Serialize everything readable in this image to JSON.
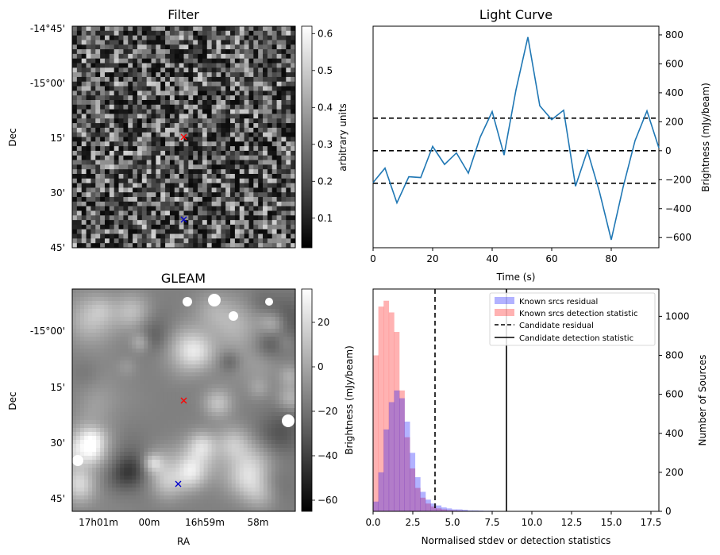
{
  "chart_data": [
    {
      "panel": "filter",
      "type": "heatmap",
      "title": "Filter",
      "ylabel": "Dec",
      "yticks": [
        "-14°45'",
        "-15°00'",
        "15'",
        "30'",
        "45'"
      ],
      "colorbar": {
        "label": "arbitrary units",
        "range": [
          0.02,
          0.62
        ],
        "ticks": [
          "0.1",
          "0.2",
          "0.3",
          "0.4",
          "0.5",
          "0.6"
        ],
        "tick_values": [
          0.1,
          0.2,
          0.3,
          0.4,
          0.5,
          0.6
        ],
        "cmap": "gray"
      },
      "markers": [
        {
          "name": "candidate",
          "symbol": "x",
          "color": "#ff0000"
        },
        {
          "name": "reference",
          "symbol": "x",
          "color": "#0000cc"
        }
      ]
    },
    {
      "panel": "gleam",
      "type": "heatmap",
      "title": "GLEAM",
      "xlabel": "RA",
      "ylabel": "Dec",
      "xticks": [
        "17h01m",
        "00m",
        "16h59m",
        "58m"
      ],
      "yticks": [
        "-15°00'",
        "15'",
        "30'",
        "45'"
      ],
      "colorbar": {
        "label": "Brightness (mJy/beam)",
        "range": [
          -65,
          35
        ],
        "ticks": [
          "20",
          "0",
          "−20",
          "−40",
          "−60"
        ],
        "tick_values": [
          20,
          0,
          -20,
          -40,
          -60
        ],
        "cmap": "gray"
      },
      "markers": [
        {
          "name": "candidate",
          "symbol": "x",
          "color": "#ff0000"
        },
        {
          "name": "reference",
          "symbol": "x",
          "color": "#0000cc"
        }
      ]
    },
    {
      "panel": "lightcurve",
      "type": "line",
      "title": "Light Curve",
      "xlabel": "Time (s)",
      "ylabel": "Brightness (mJy/beam)",
      "xlim": [
        0,
        96
      ],
      "ylim": [
        -670,
        860
      ],
      "xticks": [
        0,
        20,
        40,
        60,
        80
      ],
      "yticks": [
        -600,
        -400,
        -200,
        0,
        200,
        400,
        600,
        800
      ],
      "color": "#1f77b4",
      "x": [
        0,
        4,
        8,
        12,
        16,
        20,
        24,
        28,
        32,
        36,
        40,
        44,
        48,
        52,
        56,
        60,
        64,
        68,
        72,
        76,
        80,
        84,
        88,
        92,
        96
      ],
      "y": [
        -220,
        -120,
        -360,
        -180,
        -185,
        30,
        -95,
        -15,
        -155,
        95,
        270,
        -30,
        420,
        785,
        310,
        215,
        280,
        -245,
        0,
        -280,
        -615,
        -250,
        70,
        275,
        20
      ],
      "hlines": [
        {
          "y": 225,
          "style": "dashed"
        },
        {
          "y": 0,
          "style": "dashed"
        },
        {
          "y": -225,
          "style": "dashed"
        }
      ]
    },
    {
      "panel": "histogram",
      "type": "bar",
      "xlabel": "Normalised stdev or detection statistics",
      "ylabel": "Number of Sources",
      "xlim": [
        0,
        18
      ],
      "ylim": [
        0,
        1140
      ],
      "xticks": [
        "0.0",
        "2.5",
        "5.0",
        "7.5",
        "10.0",
        "12.5",
        "15.0",
        "17.5"
      ],
      "xtick_values": [
        0,
        2.5,
        5,
        7.5,
        10,
        12.5,
        15,
        17.5
      ],
      "yticks": [
        0,
        200,
        400,
        600,
        800,
        1000
      ],
      "bin_width": 0.33,
      "series": [
        {
          "name": "Known srcs residual",
          "color": "#0000ff",
          "alpha": 0.3,
          "values": [
            50,
            200,
            420,
            560,
            620,
            580,
            460,
            300,
            175,
            100,
            60,
            40,
            30,
            20,
            15,
            10,
            10,
            8,
            5,
            5,
            4,
            3,
            3,
            2,
            2,
            2,
            1,
            1,
            1,
            1,
            1,
            1,
            1,
            1,
            1,
            1,
            1,
            1,
            1,
            1,
            1,
            1,
            1,
            1,
            1,
            1,
            1,
            1,
            1,
            1,
            1,
            1,
            1,
            1
          ]
        },
        {
          "name": "Known srcs detection statistic",
          "color": "#ff0000",
          "alpha": 0.3,
          "values": [
            800,
            1050,
            1080,
            1020,
            920,
            620,
            380,
            220,
            120,
            70,
            40,
            25,
            15,
            10,
            6,
            5,
            4,
            3,
            2,
            2,
            1,
            1,
            1,
            1,
            1,
            1,
            1,
            1,
            1,
            1,
            1,
            1,
            1,
            1,
            1,
            1,
            1,
            1,
            1,
            1,
            1,
            1,
            1,
            1,
            1,
            1,
            1,
            1,
            1,
            1,
            1,
            1,
            1,
            1
          ]
        }
      ],
      "vlines": [
        {
          "name": "Candidate residual",
          "x": 3.9,
          "style": "dashed"
        },
        {
          "name": "Candidate detection statistic",
          "x": 8.4,
          "style": "solid"
        }
      ]
    }
  ]
}
